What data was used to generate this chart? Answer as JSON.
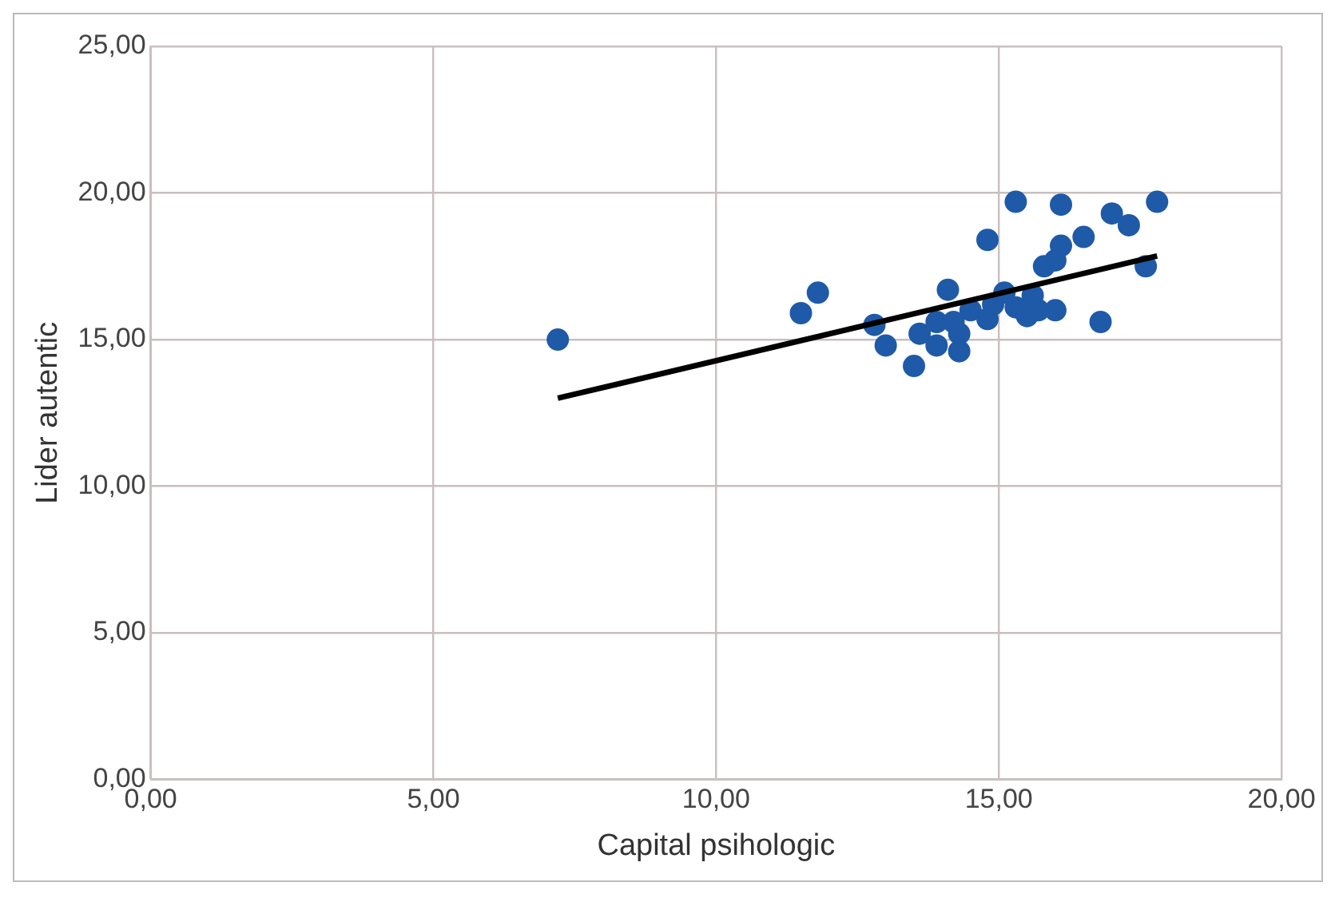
{
  "chart_data": {
    "type": "scatter",
    "xlabel": "Capital psihologic",
    "ylabel": "Lider autentic",
    "xlim": [
      0,
      20
    ],
    "ylim": [
      0,
      25
    ],
    "xticks": [
      {
        "value": 0,
        "label": "0,00"
      },
      {
        "value": 5,
        "label": "5,00"
      },
      {
        "value": 10,
        "label": "10,00"
      },
      {
        "value": 15,
        "label": "15,00"
      },
      {
        "value": 20,
        "label": "20,00"
      }
    ],
    "yticks": [
      {
        "value": 0,
        "label": "0,00"
      },
      {
        "value": 5,
        "label": "5,00"
      },
      {
        "value": 10,
        "label": "10,00"
      },
      {
        "value": 15,
        "label": "15,00"
      },
      {
        "value": 20,
        "label": "20,00"
      },
      {
        "value": 25,
        "label": "25,00"
      }
    ],
    "grid": true,
    "legend": false,
    "series": [
      {
        "type": "scatter",
        "marker": "circle",
        "color": "#1f5aa8",
        "x": [
          7.2,
          15.3,
          16.1,
          17.8,
          17.0,
          17.3,
          16.5,
          14.8,
          16.1,
          16.0,
          15.8,
          17.6,
          11.8,
          11.5,
          14.1,
          12.8,
          13.0,
          13.5,
          13.6,
          13.9,
          14.3,
          14.3,
          14.5,
          14.8,
          14.9,
          15.1,
          15.3,
          15.5,
          15.7,
          16.0,
          16.8,
          15.6,
          13.9,
          14.2
        ],
        "values": [
          15.0,
          19.7,
          19.6,
          19.7,
          19.3,
          18.9,
          18.5,
          18.4,
          18.2,
          17.7,
          17.5,
          17.5,
          16.6,
          15.9,
          16.7,
          15.5,
          14.8,
          14.1,
          15.2,
          15.6,
          14.6,
          15.2,
          16.0,
          15.7,
          16.2,
          16.6,
          16.1,
          15.8,
          16.0,
          16.0,
          15.6,
          16.5,
          14.8,
          15.6
        ]
      },
      {
        "type": "line",
        "color": "#000000",
        "x": [
          7.2,
          17.8
        ],
        "values": [
          13.0,
          17.85
        ]
      }
    ]
  }
}
